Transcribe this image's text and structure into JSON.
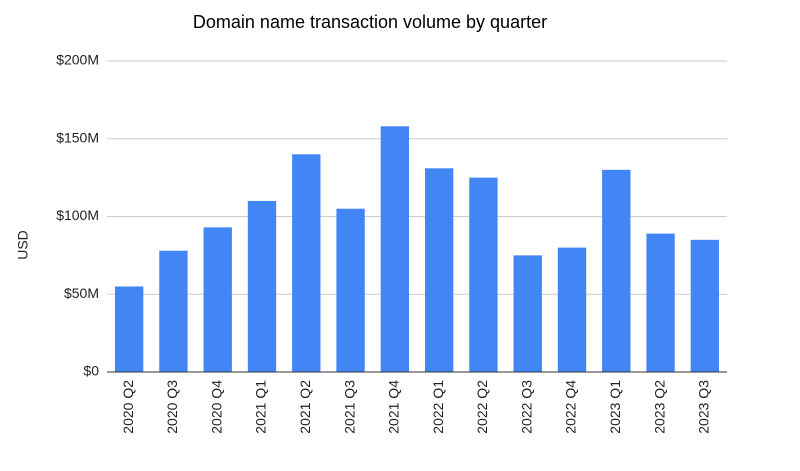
{
  "chart_data": {
    "type": "bar",
    "title": "Domain name transaction volume by quarter",
    "y_label": "USD",
    "categories": [
      "2020 Q2",
      "2020 Q3",
      "2020 Q4",
      "2021 Q1",
      "2021 Q2",
      "2021 Q3",
      "2021 Q4",
      "2022 Q1",
      "2022 Q2",
      "2022 Q3",
      "2022 Q4",
      "2023 Q1",
      "2023 Q2",
      "2023 Q3"
    ],
    "values": [
      55000000,
      78000000,
      93000000,
      110000000,
      140000000,
      105000000,
      158000000,
      131000000,
      125000000,
      75000000,
      80000000,
      130000000,
      89000000,
      85000000
    ],
    "color": "#4285f4",
    "ylim": [
      0,
      200000000
    ],
    "yticks": [
      {
        "value": 0,
        "label": "$0"
      },
      {
        "value": 50000000,
        "label": "$50M"
      },
      {
        "value": 100000000,
        "label": "$100M"
      },
      {
        "value": 150000000,
        "label": "$150M"
      },
      {
        "value": 200000000,
        "label": "$200M"
      }
    ],
    "grid": true
  }
}
